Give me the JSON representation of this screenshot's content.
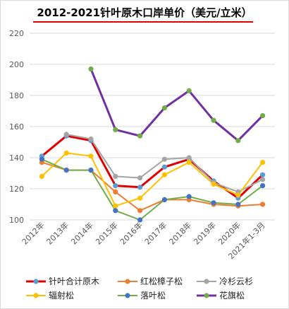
{
  "chart_data": {
    "type": "line",
    "title": "2012-2021针叶原木口岸单价（美元/立米）",
    "categories": [
      "2012年",
      "2013年",
      "2014年",
      "2015年",
      "2016年",
      "2017年",
      "2018年",
      "2019年",
      "2020年",
      "2021年1-3月"
    ],
    "ylim": [
      100,
      220
    ],
    "yticks": [
      100,
      120,
      140,
      160,
      180,
      200,
      220
    ],
    "grid": true,
    "legend_position": "bottom",
    "series": [
      {
        "name": "针叶合计原木",
        "line_color": "#e00000",
        "marker_color": "#5b9bd5",
        "line_width": 3,
        "values": [
          141,
          154,
          151,
          122,
          121,
          134,
          139,
          125,
          114,
          129
        ]
      },
      {
        "name": "红松樟子松",
        "line_color": "#ed7d31",
        "marker_color": "#ed7d31",
        "line_width": 2,
        "values": [
          137,
          132,
          132,
          118,
          106,
          113,
          113,
          110,
          109,
          110
        ]
      },
      {
        "name": "冷杉云杉",
        "line_color": "#a5a5a5",
        "marker_color": "#a5a5a5",
        "line_width": 2,
        "values": [
          null,
          155,
          152,
          128,
          127,
          139,
          140,
          124,
          118,
          126
        ]
      },
      {
        "name": "辐射松",
        "line_color": "#ffc000",
        "marker_color": "#ffc000",
        "line_width": 2,
        "values": [
          128,
          143,
          141,
          109,
          114,
          129,
          137,
          123,
          116,
          137
        ]
      },
      {
        "name": "落叶松",
        "line_color": "#70ad47",
        "marker_color": "#4472c4",
        "line_width": 2,
        "values": [
          139,
          132,
          132,
          106,
          100,
          113,
          115,
          111,
          110,
          122
        ]
      },
      {
        "name": "花旗松",
        "line_color": "#7030a0",
        "marker_color": "#70ad47",
        "line_width": 3,
        "values": [
          null,
          null,
          197,
          158,
          154,
          172,
          183,
          164,
          151,
          167
        ]
      }
    ]
  }
}
